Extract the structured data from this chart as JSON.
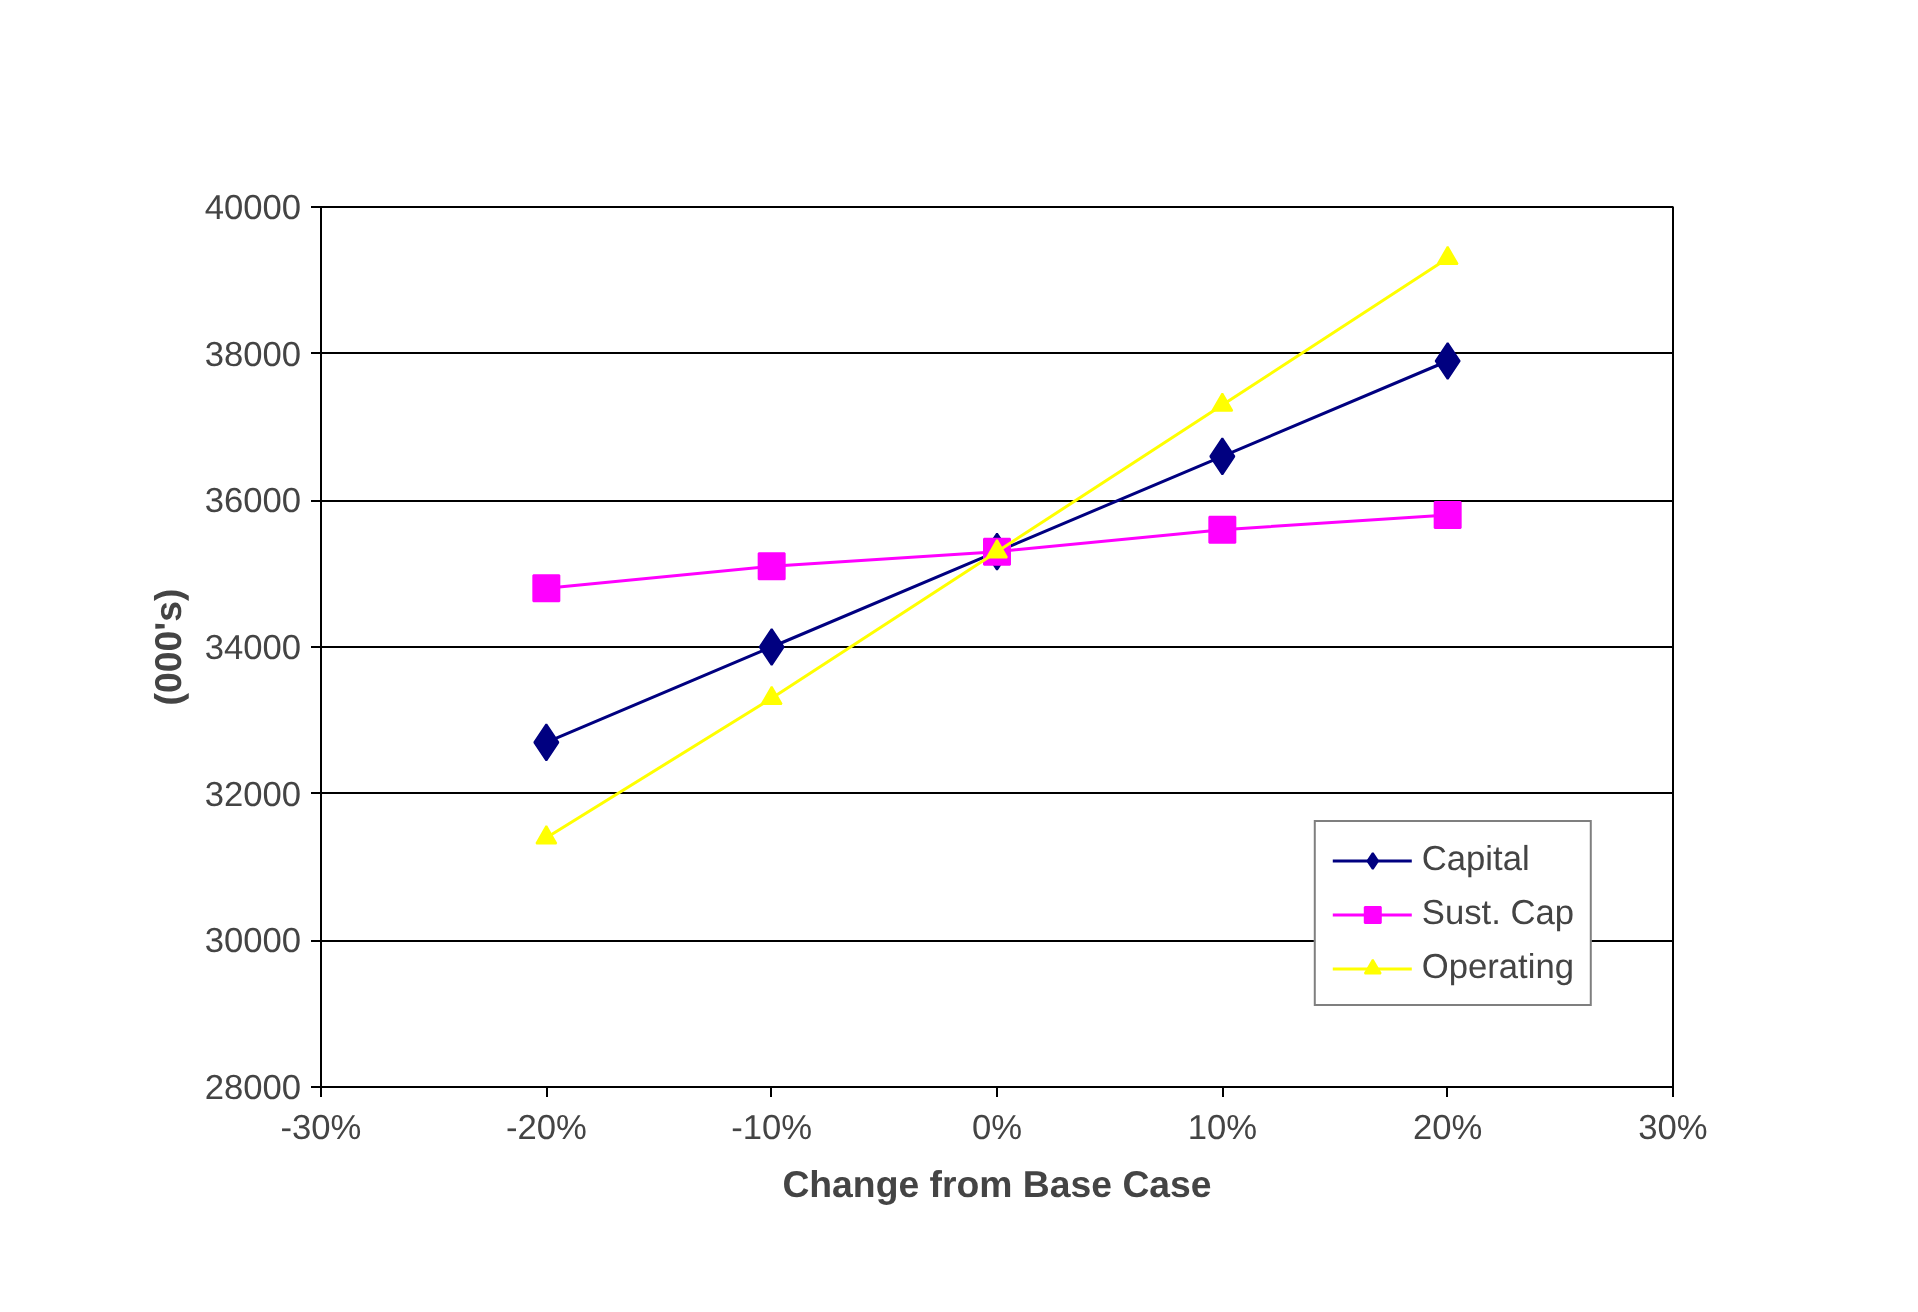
{
  "chart_data": {
    "type": "line",
    "xlabel": "Change from Base Case",
    "ylabel": "(000's)",
    "x": [
      -20,
      -10,
      0,
      10,
      20
    ],
    "series": [
      {
        "name": "Capital",
        "color": "#000080",
        "marker": "diamond",
        "values": [
          32700,
          34000,
          35300,
          36600,
          37900
        ]
      },
      {
        "name": "Sust. Cap",
        "color": "#ff00ff",
        "marker": "square",
        "values": [
          34800,
          35100,
          35300,
          35600,
          35800
        ]
      },
      {
        "name": "Operating",
        "color": "#ffff00",
        "marker": "triangle",
        "values": [
          31400,
          33300,
          35300,
          37300,
          39300
        ]
      }
    ],
    "xlim": [
      -30,
      30
    ],
    "xticks": [
      {
        "value": -30,
        "label": "-30%"
      },
      {
        "value": -20,
        "label": "-20%"
      },
      {
        "value": -10,
        "label": "-10%"
      },
      {
        "value": 0,
        "label": "0%"
      },
      {
        "value": 10,
        "label": "10%"
      },
      {
        "value": 20,
        "label": "20%"
      },
      {
        "value": 30,
        "label": "30%"
      }
    ],
    "ylim": [
      28000,
      40000
    ],
    "yticks": [
      28000,
      30000,
      32000,
      34000,
      36000,
      38000,
      40000
    ],
    "grid": "y",
    "legend": "bottom right",
    "line_style": "solid"
  }
}
